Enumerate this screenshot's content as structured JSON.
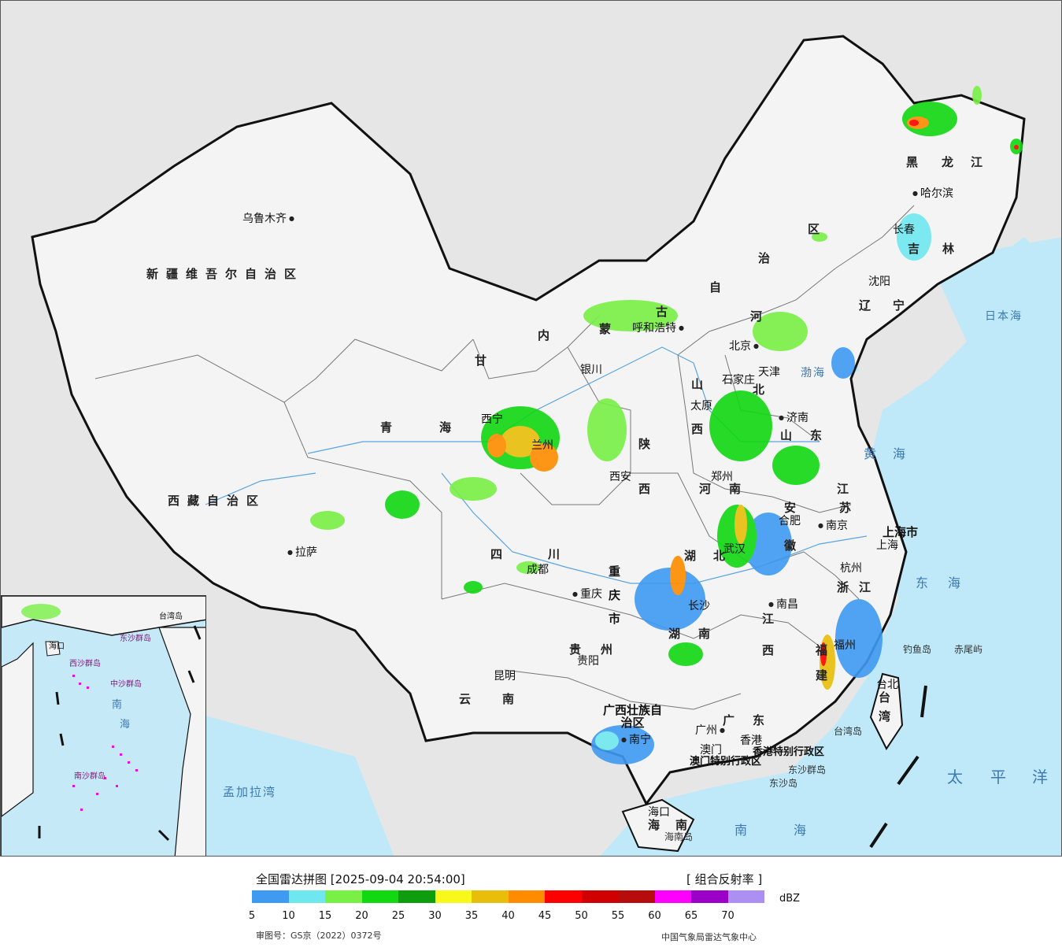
{
  "title": "全国雷达拼图 [2025-09-04 20:54:00]",
  "product": "[ 组合反射率 ]",
  "unit": "dBZ",
  "approval": "审图号：GS京（2022）0372号",
  "agency": "中国气象局雷达气象中心",
  "legend": {
    "colors": [
      "#3f9af2",
      "#6ee8ee",
      "#78f046",
      "#12d812",
      "#0d9d0d",
      "#f8f81a",
      "#e8be0a",
      "#ff8c00",
      "#ff0000",
      "#d10000",
      "#b60c0c",
      "#ff00ff",
      "#9a00c8",
      "#ab8ff2"
    ],
    "ticks": [
      "5",
      "10",
      "15",
      "20",
      "25",
      "30",
      "35",
      "40",
      "45",
      "50",
      "55",
      "60",
      "65",
      "70"
    ]
  },
  "map": {
    "provinces": [
      "新疆维吾尔自治区",
      "西藏自治区",
      "青",
      "海",
      "甘",
      "内",
      "蒙",
      "古",
      "自",
      "治",
      "区",
      "黑",
      "龙",
      "江",
      "吉",
      "林",
      "辽",
      "宁",
      "河",
      "北",
      "山",
      "西",
      "陕",
      "西",
      "河",
      "南",
      "山",
      "东",
      "江",
      "苏",
      "安",
      "徽",
      "湖",
      "北",
      "湖",
      "南",
      "江",
      "西",
      "浙",
      "江",
      "福",
      "建",
      "四",
      "川",
      "重庆市",
      "贵",
      "州",
      "云",
      "南",
      "广西壮族自治区",
      "广",
      "东",
      "海",
      "南",
      "台",
      "湾",
      "上海市",
      "香港特别行政区",
      "澳门特别行政区"
    ],
    "cities": [
      "乌鲁木齐",
      "拉萨",
      "西宁",
      "兰州",
      "银川",
      "呼和浩特",
      "北京",
      "天津",
      "石家庄",
      "太原",
      "济南",
      "郑州",
      "西安",
      "合肥",
      "南京",
      "上海",
      "杭州",
      "武汉",
      "成都",
      "重庆",
      "长沙",
      "南昌",
      "福州",
      "贵阳",
      "昆明",
      "南宁",
      "广州",
      "香港",
      "澳门",
      "海口",
      "台北",
      "哈尔滨",
      "长春",
      "沈阳"
    ],
    "seas": [
      "黄",
      "海",
      "东",
      "海",
      "南",
      "海",
      "渤海",
      "日本海",
      "太",
      "平",
      "洋",
      "孟加拉湾"
    ],
    "islands": [
      "钓鱼岛",
      "赤尾屿",
      "台湾岛",
      "东沙群岛",
      "东沙岛",
      "海南岛"
    ]
  },
  "inset": {
    "labels": [
      "南",
      "海",
      "中沙群岛",
      "西沙群岛",
      "南沙群岛",
      "东沙群岛",
      "海口",
      "台湾岛"
    ]
  }
}
